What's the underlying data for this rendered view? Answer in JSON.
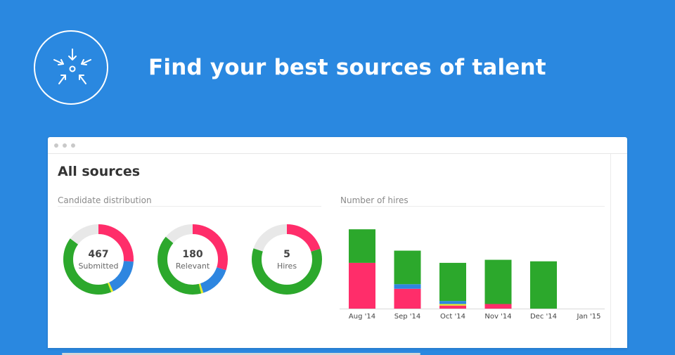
{
  "header": {
    "headline": "Find your best sources of talent",
    "logo_icon": "converging-arrows-icon"
  },
  "window": {
    "title": "All sources",
    "candidate_section_label": "Candidate distribution",
    "hires_section_label": "Number of hires"
  },
  "colors": {
    "background": "#2a88e0",
    "pink": "#ff2d6a",
    "green": "#2ca82c",
    "blue": "#2e86e0",
    "yellow": "#e6ed2a",
    "gray": "#e8e8e8"
  },
  "donuts": [
    {
      "value": "467",
      "label": "Submitted",
      "segments": [
        {
          "color": "pink",
          "fraction": 0.26
        },
        {
          "color": "blue",
          "fraction": 0.17
        },
        {
          "color": "yellow",
          "fraction": 0.01
        },
        {
          "color": "green",
          "fraction": 0.41
        },
        {
          "color": "gray",
          "fraction": 0.15
        }
      ]
    },
    {
      "value": "180",
      "label": "Relevant",
      "segments": [
        {
          "color": "pink",
          "fraction": 0.3
        },
        {
          "color": "blue",
          "fraction": 0.15
        },
        {
          "color": "yellow",
          "fraction": 0.01
        },
        {
          "color": "green",
          "fraction": 0.4
        },
        {
          "color": "gray",
          "fraction": 0.14
        }
      ]
    },
    {
      "value": "5",
      "label": "Hires",
      "segments": [
        {
          "color": "pink",
          "fraction": 0.2
        },
        {
          "color": "green",
          "fraction": 0.6
        },
        {
          "color": "gray",
          "fraction": 0.2
        }
      ]
    }
  ],
  "chart_data": {
    "type": "bar",
    "stacked": true,
    "categories": [
      "Aug '14",
      "Sep '14",
      "Oct '14",
      "Nov '14",
      "Dec '14",
      "Jan '15"
    ],
    "series": [
      {
        "color": "pink",
        "values": [
          3,
          1.3,
          0.2,
          0.3,
          0,
          0
        ]
      },
      {
        "color": "yellow",
        "values": [
          0,
          0,
          0.1,
          0,
          0,
          0
        ]
      },
      {
        "color": "blue",
        "values": [
          0,
          0.3,
          0.2,
          0,
          0,
          0
        ]
      },
      {
        "color": "green",
        "values": [
          2.2,
          2.2,
          2.5,
          2.9,
          3.1,
          0
        ]
      }
    ],
    "ylim": [
      0,
      5.3
    ],
    "grid": false
  }
}
